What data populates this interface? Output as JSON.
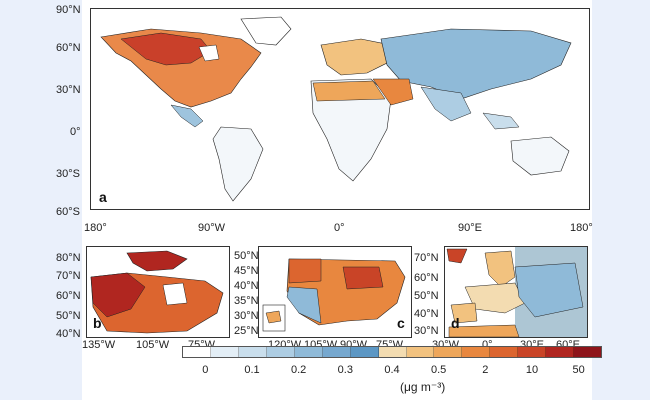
{
  "map": {
    "panels": {
      "a": {
        "letter": "a",
        "lat_ticks": [
          "90°N",
          "60°N",
          "30°N",
          "0°",
          "30°S",
          "60°S"
        ],
        "lon_ticks": [
          "180°",
          "90°W",
          "0°",
          "90°E",
          "180°"
        ]
      },
      "b": {
        "letter": "b",
        "lat_ticks": [
          "80°N",
          "70°N",
          "60°N",
          "50°N",
          "40°N"
        ],
        "lon_ticks": [
          "135°W",
          "105°W",
          "75°W"
        ]
      },
      "c": {
        "letter": "c",
        "lat_ticks": [
          "50°N",
          "45°N",
          "40°N",
          "35°N",
          "30°N",
          "25°N"
        ],
        "lon_ticks": [
          "120°W",
          "105°W",
          "90°W",
          "75°W"
        ]
      },
      "d": {
        "letter": "d",
        "lat_ticks": [
          "70°N",
          "60°N",
          "50°N",
          "40°N",
          "30°N"
        ],
        "lon_ticks": [
          "30°W",
          "0°",
          "30°E",
          "60°E"
        ]
      }
    },
    "colorbar": {
      "labels": [
        "0",
        "0.1",
        "0.2",
        "0.3",
        "0.4",
        "0.5",
        "2",
        "10",
        "50"
      ],
      "colors": [
        "#ffffff",
        "#e3eef6",
        "#c9deec",
        "#adcde3",
        "#8fbad8",
        "#76a8cf",
        "#5c97c4",
        "#f3dcb1",
        "#f2c27f",
        "#eea65a",
        "#e8873f",
        "#dc652f",
        "#c94427",
        "#b02620",
        "#8e141a"
      ],
      "units": "(μg m⁻³)"
    }
  }
}
